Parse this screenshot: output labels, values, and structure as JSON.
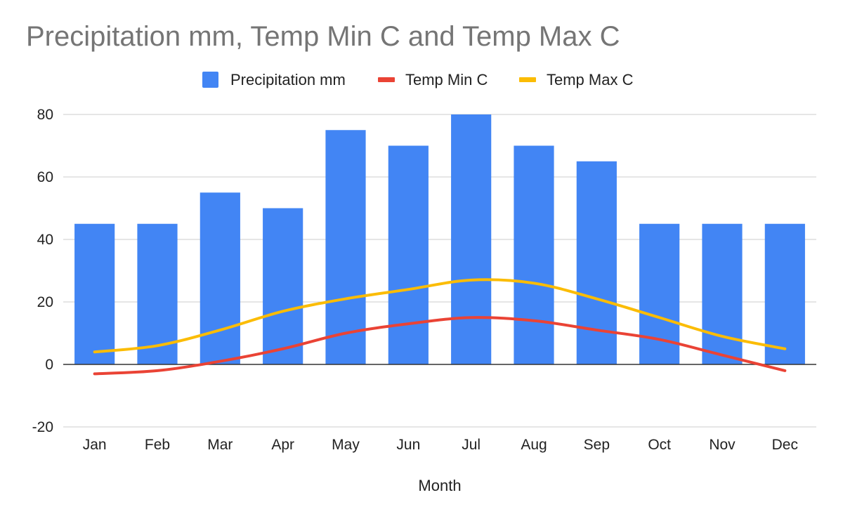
{
  "chart_data": {
    "type": "bar",
    "title": "Precipitation mm, Temp Min C and Temp Max C",
    "xlabel": "Month",
    "ylabel": "",
    "categories": [
      "Jan",
      "Feb",
      "Mar",
      "Apr",
      "May",
      "Jun",
      "Jul",
      "Aug",
      "Sep",
      "Oct",
      "Nov",
      "Dec"
    ],
    "ylim": [
      -20,
      80
    ],
    "yticks": [
      -20,
      0,
      20,
      40,
      60,
      80
    ],
    "grid": true,
    "legend_position": "top",
    "series": [
      {
        "name": "Precipitation mm",
        "type": "bar",
        "color": "#4285f4",
        "values": [
          45,
          45,
          55,
          50,
          75,
          70,
          80,
          70,
          65,
          45,
          45,
          45
        ]
      },
      {
        "name": "Temp Min C",
        "type": "line",
        "color": "#ea4335",
        "values": [
          -3,
          -2,
          1,
          5,
          10,
          13,
          15,
          14,
          11,
          8,
          3,
          -2
        ]
      },
      {
        "name": "Temp Max C",
        "type": "line",
        "color": "#fbbc04",
        "values": [
          4,
          6,
          11,
          17,
          21,
          24,
          27,
          26,
          21,
          15,
          9,
          5
        ]
      }
    ]
  }
}
